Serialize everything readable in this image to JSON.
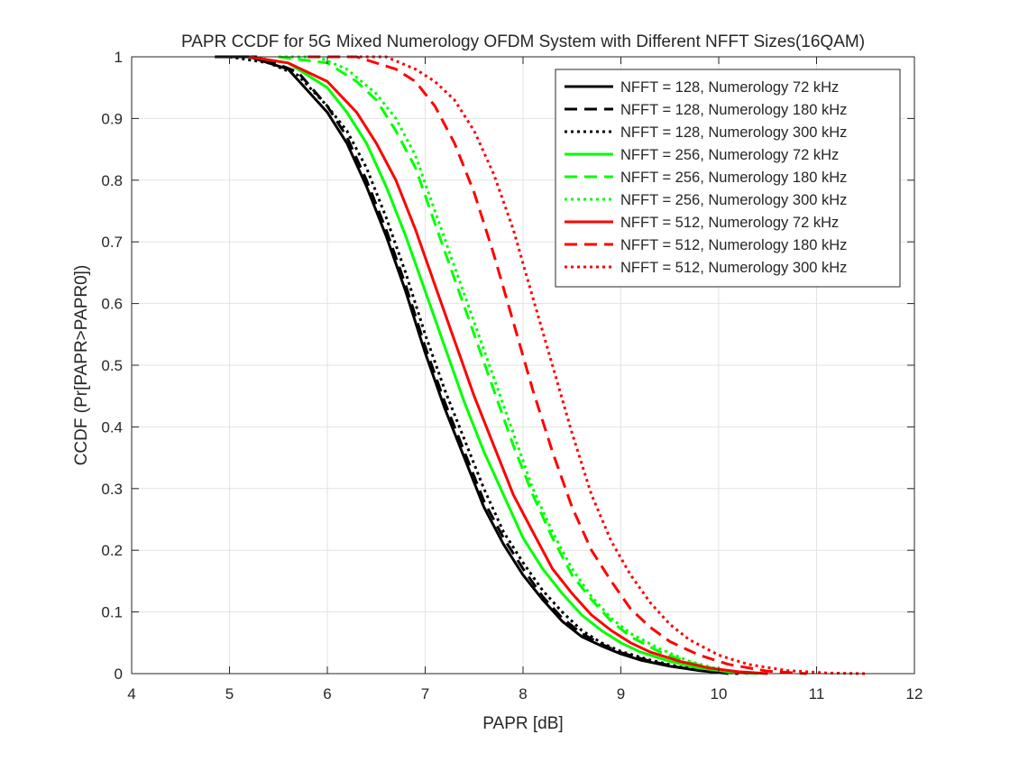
{
  "chart_data": {
    "type": "line",
    "title": "PAPR CCDF for 5G Mixed Numerology OFDM System with Different NFFT Sizes(16QAM)",
    "xlabel": "PAPR [dB]",
    "ylabel": "CCDF (Pr[PAPR>PAPR0])",
    "xlim": [
      4,
      12
    ],
    "ylim": [
      0,
      1
    ],
    "xticks": [
      4,
      5,
      6,
      7,
      8,
      9,
      10,
      11,
      12
    ],
    "xtick_labels": [
      "4",
      "5",
      "6",
      "7",
      "8",
      "9",
      "10",
      "11",
      "12"
    ],
    "yticks": [
      0,
      0.1,
      0.2,
      0.3,
      0.4,
      0.5,
      0.6,
      0.7,
      0.8,
      0.9,
      1
    ],
    "ytick_labels": [
      "0",
      "0.1",
      "0.2",
      "0.3",
      "0.4",
      "0.5",
      "0.6",
      "0.7",
      "0.8",
      "0.9",
      "1"
    ],
    "grid": true,
    "legend_position": "top-right",
    "series": [
      {
        "name": "NFFT = 128, Numerology 72 kHz",
        "color": "#000000",
        "style": "solid",
        "x": [
          4.85,
          5.2,
          5.6,
          6.0,
          6.2,
          6.4,
          6.6,
          6.8,
          7.0,
          7.2,
          7.4,
          7.6,
          7.8,
          8.0,
          8.2,
          8.4,
          8.6,
          8.8,
          9.0,
          9.2,
          9.5,
          9.8,
          10.1
        ],
        "y": [
          1.0,
          1.0,
          0.98,
          0.91,
          0.86,
          0.79,
          0.71,
          0.62,
          0.52,
          0.43,
          0.35,
          0.27,
          0.21,
          0.16,
          0.12,
          0.085,
          0.06,
          0.045,
          0.032,
          0.022,
          0.012,
          0.005,
          0.0
        ]
      },
      {
        "name": "NFFT = 128, Numerology 180 kHz",
        "color": "#000000",
        "style": "dashed",
        "x": [
          4.95,
          5.3,
          5.7,
          6.0,
          6.2,
          6.4,
          6.6,
          6.8,
          7.0,
          7.2,
          7.4,
          7.6,
          7.8,
          8.0,
          8.2,
          8.4,
          8.6,
          8.8,
          9.0,
          9.3,
          9.6,
          9.9,
          10.2
        ],
        "y": [
          1.0,
          1.0,
          0.975,
          0.92,
          0.87,
          0.8,
          0.72,
          0.63,
          0.53,
          0.44,
          0.36,
          0.28,
          0.22,
          0.17,
          0.125,
          0.09,
          0.065,
          0.048,
          0.034,
          0.02,
          0.01,
          0.004,
          0.0
        ]
      },
      {
        "name": "NFFT = 128, Numerology 300 kHz",
        "color": "#000000",
        "style": "dotted",
        "x": [
          5.0,
          5.4,
          5.7,
          6.0,
          6.2,
          6.4,
          6.6,
          6.8,
          7.0,
          7.2,
          7.4,
          7.6,
          7.8,
          8.0,
          8.2,
          8.4,
          8.6,
          8.8,
          9.0,
          9.3,
          9.6,
          9.9,
          10.2
        ],
        "y": [
          1.0,
          0.99,
          0.97,
          0.92,
          0.88,
          0.82,
          0.74,
          0.65,
          0.55,
          0.46,
          0.38,
          0.3,
          0.23,
          0.18,
          0.135,
          0.1,
          0.07,
          0.05,
          0.036,
          0.022,
          0.011,
          0.005,
          0.0
        ]
      },
      {
        "name": "NFFT = 256, Numerology 72 kHz",
        "color": "#00ff00",
        "style": "solid",
        "x": [
          5.2,
          5.6,
          6.0,
          6.2,
          6.4,
          6.6,
          6.8,
          7.0,
          7.2,
          7.4,
          7.6,
          7.8,
          8.0,
          8.2,
          8.4,
          8.6,
          8.8,
          9.0,
          9.2,
          9.5,
          9.8,
          10.1,
          10.4
        ],
        "y": [
          1.0,
          0.99,
          0.95,
          0.91,
          0.86,
          0.79,
          0.71,
          0.62,
          0.53,
          0.44,
          0.36,
          0.29,
          0.22,
          0.17,
          0.13,
          0.095,
          0.07,
          0.05,
          0.035,
          0.02,
          0.009,
          0.003,
          0.0
        ]
      },
      {
        "name": "NFFT = 256, Numerology 180 kHz",
        "color": "#00ff00",
        "style": "dashed",
        "x": [
          5.5,
          6.0,
          6.3,
          6.5,
          6.7,
          6.9,
          7.1,
          7.3,
          7.5,
          7.7,
          7.9,
          8.1,
          8.3,
          8.5,
          8.7,
          8.9,
          9.1,
          9.4,
          9.7,
          10.0,
          10.3
        ],
        "y": [
          1.0,
          0.99,
          0.96,
          0.93,
          0.88,
          0.82,
          0.73,
          0.64,
          0.55,
          0.46,
          0.37,
          0.29,
          0.22,
          0.16,
          0.12,
          0.085,
          0.06,
          0.035,
          0.018,
          0.006,
          0.0
        ]
      },
      {
        "name": "NFFT = 256, Numerology 300 kHz",
        "color": "#00ff00",
        "style": "dotted",
        "x": [
          5.5,
          5.9,
          6.2,
          6.5,
          6.7,
          6.9,
          7.1,
          7.3,
          7.5,
          7.7,
          7.9,
          8.1,
          8.3,
          8.5,
          8.7,
          8.9,
          9.1,
          9.4,
          9.7,
          10.0,
          10.3
        ],
        "y": [
          1.0,
          1.0,
          0.98,
          0.94,
          0.9,
          0.84,
          0.75,
          0.66,
          0.57,
          0.48,
          0.39,
          0.3,
          0.23,
          0.17,
          0.125,
          0.09,
          0.065,
          0.04,
          0.02,
          0.007,
          0.0
        ]
      },
      {
        "name": "NFFT = 512, Numerology 72 kHz",
        "color": "#ff0000",
        "style": "solid",
        "x": [
          5.2,
          5.6,
          6.0,
          6.3,
          6.5,
          6.7,
          6.9,
          7.1,
          7.3,
          7.5,
          7.7,
          7.9,
          8.1,
          8.3,
          8.5,
          8.7,
          8.9,
          9.1,
          9.3,
          9.6,
          9.9,
          10.2,
          10.5
        ],
        "y": [
          1.0,
          0.99,
          0.96,
          0.91,
          0.86,
          0.8,
          0.72,
          0.63,
          0.54,
          0.45,
          0.37,
          0.29,
          0.23,
          0.17,
          0.13,
          0.095,
          0.07,
          0.05,
          0.035,
          0.02,
          0.009,
          0.003,
          0.0
        ]
      },
      {
        "name": "NFFT = 512, Numerology 180 kHz",
        "color": "#ff0000",
        "style": "dashed",
        "x": [
          5.8,
          6.3,
          6.7,
          6.9,
          7.1,
          7.3,
          7.5,
          7.7,
          7.9,
          8.1,
          8.3,
          8.5,
          8.7,
          8.9,
          9.1,
          9.3,
          9.5,
          9.8,
          10.1,
          10.5,
          10.9
        ],
        "y": [
          1.0,
          1.0,
          0.98,
          0.96,
          0.92,
          0.86,
          0.78,
          0.68,
          0.57,
          0.46,
          0.36,
          0.27,
          0.2,
          0.15,
          0.105,
          0.075,
          0.052,
          0.03,
          0.015,
          0.004,
          0.0
        ]
      },
      {
        "name": "NFFT = 512, Numerology 300 kHz",
        "color": "#ff0000",
        "style": "dotted",
        "x": [
          6.2,
          6.6,
          6.9,
          7.1,
          7.3,
          7.5,
          7.7,
          7.9,
          8.1,
          8.3,
          8.5,
          8.7,
          8.9,
          9.1,
          9.3,
          9.5,
          9.7,
          10.0,
          10.3,
          10.7,
          11.1,
          11.5
        ],
        "y": [
          1.0,
          1.0,
          0.98,
          0.96,
          0.93,
          0.88,
          0.81,
          0.72,
          0.61,
          0.5,
          0.39,
          0.29,
          0.215,
          0.16,
          0.115,
          0.08,
          0.055,
          0.03,
          0.015,
          0.005,
          0.001,
          0.0
        ]
      }
    ]
  }
}
